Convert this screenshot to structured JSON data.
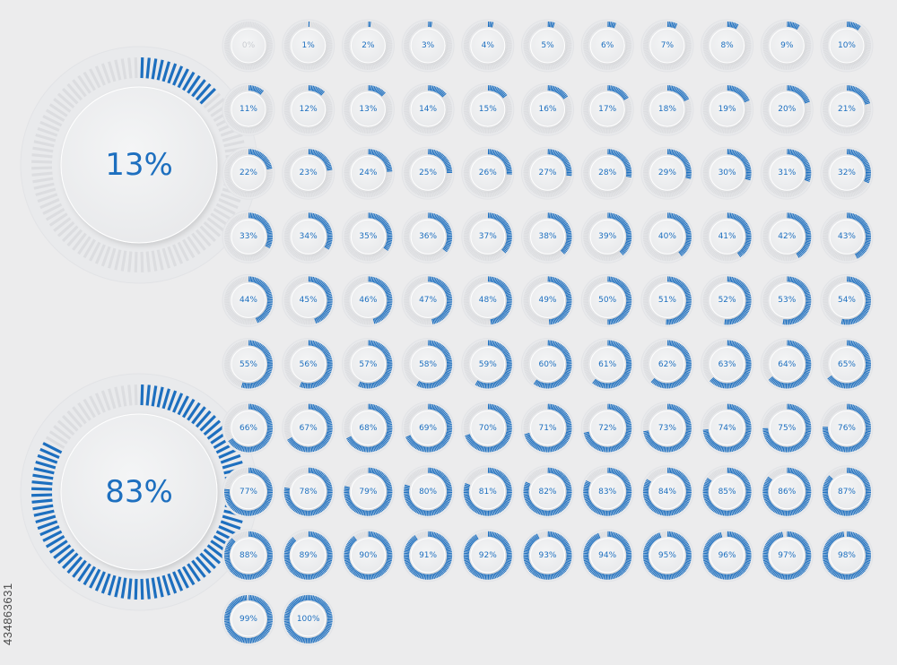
{
  "colors": {
    "background": "#ececed",
    "accent": "#1d6fbf",
    "track": "#dcdde0",
    "dial_face": "#eeeff1",
    "zero_text": "#c9ccd1"
  },
  "large_gauges": [
    {
      "id": "gauge-13",
      "value": 13,
      "label": "13%"
    },
    {
      "id": "gauge-83",
      "value": 83,
      "label": "83%"
    }
  ],
  "grid": {
    "rows": 10,
    "cols": 11,
    "items": [
      "0%",
      "1%",
      "2%",
      "3%",
      "4%",
      "5%",
      "6%",
      "7%",
      "8%",
      "9%",
      "10%",
      "11%",
      "12%",
      "13%",
      "14%",
      "15%",
      "16%",
      "17%",
      "18%",
      "19%",
      "20%",
      "21%",
      "22%",
      "23%",
      "24%",
      "25%",
      "26%",
      "27%",
      "28%",
      "29%",
      "30%",
      "31%",
      "32%",
      "33%",
      "34%",
      "35%",
      "36%",
      "37%",
      "38%",
      "39%",
      "40%",
      "41%",
      "42%",
      "43%",
      "44%",
      "45%",
      "46%",
      "47%",
      "48%",
      "49%",
      "50%",
      "51%",
      "52%",
      "53%",
      "54%",
      "55%",
      "56%",
      "57%",
      "58%",
      "59%",
      "60%",
      "61%",
      "62%",
      "63%",
      "64%",
      "65%",
      "66%",
      "67%",
      "68%",
      "69%",
      "70%",
      "71%",
      "72%",
      "73%",
      "74%",
      "75%",
      "76%",
      "77%",
      "78%",
      "79%",
      "80%",
      "81%",
      "82%",
      "83%",
      "84%",
      "85%",
      "86%",
      "87%",
      "88%",
      "89%",
      "90%",
      "91%",
      "92%",
      "93%",
      "94%",
      "95%",
      "96%",
      "97%",
      "98%",
      "99%",
      "100%"
    ]
  },
  "stock_id": "434863631"
}
